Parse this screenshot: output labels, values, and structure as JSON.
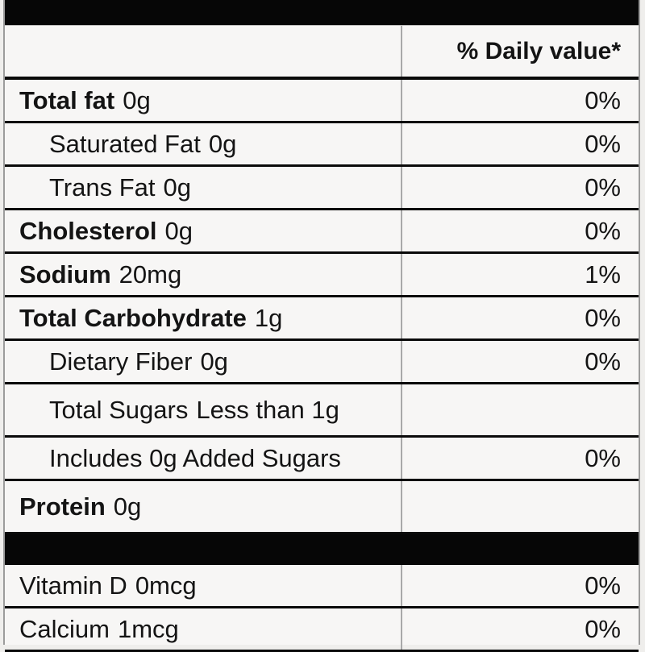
{
  "nutrition_label": {
    "header": {
      "daily_value_label": "% Daily value*"
    },
    "rows": [
      {
        "name": "Total fat",
        "amount": "0g",
        "bold": true,
        "indent": 0,
        "dv": "0%",
        "tall": false,
        "separator_after": false
      },
      {
        "name": "Saturated Fat",
        "amount": "0g",
        "bold": false,
        "indent": 1,
        "dv": "0%",
        "tall": false,
        "separator_after": false
      },
      {
        "name": "Trans Fat",
        "amount": "0g",
        "bold": false,
        "indent": 1,
        "dv": "0%",
        "tall": false,
        "separator_after": false
      },
      {
        "name": "Cholesterol",
        "amount": "0g",
        "bold": true,
        "indent": 0,
        "dv": "0%",
        "tall": false,
        "separator_after": false
      },
      {
        "name": "Sodium",
        "amount": "20mg",
        "bold": true,
        "indent": 0,
        "dv": "1%",
        "tall": false,
        "separator_after": false
      },
      {
        "name": "Total Carbohydrate",
        "amount": "1g",
        "bold": true,
        "indent": 0,
        "dv": "0%",
        "tall": false,
        "separator_after": false
      },
      {
        "name": "Dietary Fiber",
        "amount": "0g",
        "bold": false,
        "indent": 1,
        "dv": "0%",
        "tall": false,
        "separator_after": false
      },
      {
        "name": "Total Sugars",
        "amount": "Less than 1g",
        "bold": false,
        "indent": 1,
        "dv": "",
        "tall": true,
        "separator_after": false
      },
      {
        "name": "Includes 0g Added Sugars",
        "amount": "",
        "bold": false,
        "indent": 1,
        "dv": "0%",
        "tall": false,
        "separator_after": false
      },
      {
        "name": "Protein",
        "amount": "0g",
        "bold": true,
        "indent": 0,
        "dv": "",
        "tall": true,
        "separator_after": true
      },
      {
        "name": "Vitamin D",
        "amount": "0mcg",
        "bold": false,
        "indent": 0,
        "dv": "0%",
        "tall": false,
        "separator_after": false
      },
      {
        "name": "Calcium",
        "amount": "1mcg",
        "bold": false,
        "indent": 0,
        "dv": "0%",
        "tall": false,
        "separator_after": false
      }
    ],
    "colors": {
      "bar_black": "#060606",
      "rule_black": "#0a0a0a",
      "background": "#f7f6f5",
      "column_divider": "#a9a9a9",
      "outer_border": "#9c9c9c"
    }
  }
}
